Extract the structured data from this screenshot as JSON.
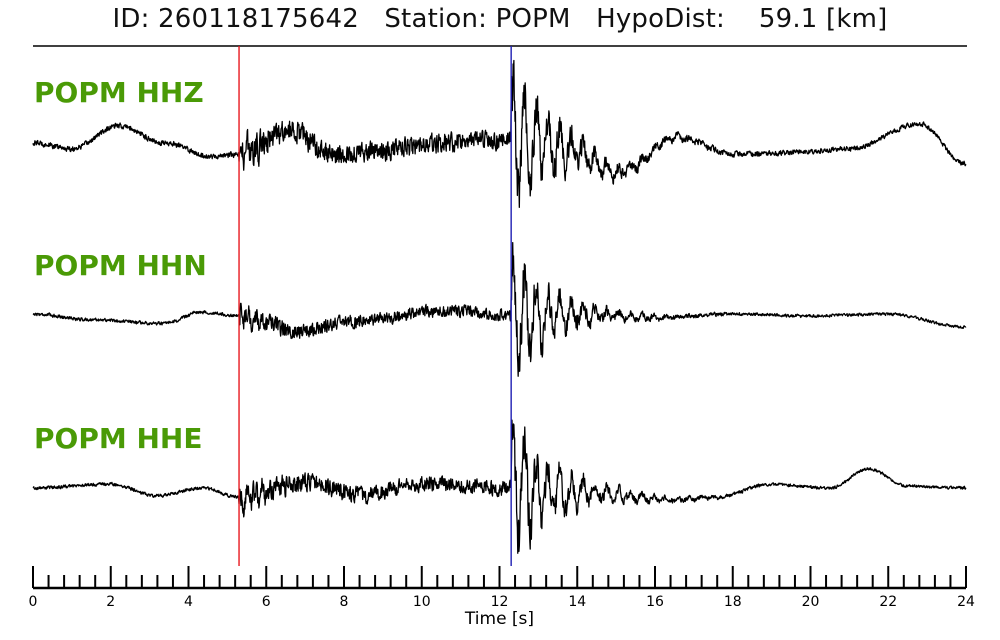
{
  "header": {
    "id_label": "ID:",
    "id_value": "260118175642",
    "station_label": "Station:",
    "station_value": "POPM",
    "dist_label": "HypoDist:",
    "dist_value": "59.1",
    "dist_unit": "[km]"
  },
  "colors": {
    "label": "#4a9a06",
    "trace": "#000000",
    "p_pick": "#e8191f",
    "s_pick": "#1f1fb4"
  },
  "chart_data": {
    "type": "line",
    "xlabel": "Time [s]",
    "xlim": [
      0,
      24
    ],
    "major_ticks": [
      0,
      2,
      4,
      6,
      8,
      10,
      12,
      14,
      16,
      18,
      20,
      22,
      24
    ],
    "minor_tick_step": 0.4,
    "picks": [
      {
        "name": "P",
        "time": 5.3,
        "color": "#e8191f"
      },
      {
        "name": "S",
        "time": 12.3,
        "color": "#1f1fb4"
      }
    ],
    "series": [
      {
        "name": "POPM HHZ",
        "pre_noise": 0.25,
        "p_amp": 0.55,
        "s_amp": 1.0,
        "coda_decay": 1.4,
        "coarse": [
          [
            0,
            0.0
          ],
          [
            1,
            -0.15
          ],
          [
            2.2,
            0.45
          ],
          [
            3.4,
            0.0
          ],
          [
            4.6,
            -0.35
          ],
          [
            5.3,
            -0.3
          ],
          [
            6.6,
            0.3
          ],
          [
            7.8,
            -0.3
          ],
          [
            9,
            -0.2
          ],
          [
            10.4,
            0.0
          ],
          [
            11.6,
            0.05
          ],
          [
            12.3,
            0.1
          ],
          [
            13.6,
            -0.1
          ],
          [
            15.1,
            -0.75
          ],
          [
            16.6,
            0.15
          ],
          [
            18,
            -0.3
          ],
          [
            19.6,
            -0.25
          ],
          [
            21,
            -0.15
          ],
          [
            22.8,
            0.5
          ],
          [
            24,
            -0.55
          ]
        ]
      },
      {
        "name": "POPM HHN",
        "pre_noise": 0.15,
        "p_amp": 0.35,
        "s_amp": 1.0,
        "coda_decay": 1.2,
        "coarse": [
          [
            0,
            0.0
          ],
          [
            1.5,
            -0.15
          ],
          [
            3.4,
            -0.25
          ],
          [
            4.3,
            0.05
          ],
          [
            5.3,
            -0.05
          ],
          [
            6.8,
            -0.45
          ],
          [
            8.2,
            -0.2
          ],
          [
            10.7,
            0.1
          ],
          [
            12.3,
            -0.05
          ],
          [
            14,
            0.0
          ],
          [
            16,
            -0.1
          ],
          [
            18,
            0.0
          ],
          [
            20,
            -0.05
          ],
          [
            22,
            0.0
          ],
          [
            24,
            -0.35
          ]
        ]
      },
      {
        "name": "POPM HHE",
        "pre_noise": 0.15,
        "p_amp": 0.45,
        "s_amp": 1.0,
        "coda_decay": 1.3,
        "coarse": [
          [
            0,
            0.0
          ],
          [
            2,
            0.1
          ],
          [
            3.2,
            -0.2
          ],
          [
            4.4,
            0.0
          ],
          [
            5.3,
            -0.25
          ],
          [
            7,
            0.15
          ],
          [
            8.5,
            -0.2
          ],
          [
            10,
            0.1
          ],
          [
            12.3,
            0.0
          ],
          [
            14,
            -0.1
          ],
          [
            16.5,
            -0.3
          ],
          [
            17.5,
            -0.25
          ],
          [
            19,
            0.1
          ],
          [
            20.5,
            0.0
          ],
          [
            21.5,
            0.5
          ],
          [
            22.5,
            0.05
          ],
          [
            24,
            0.0
          ]
        ]
      }
    ]
  }
}
